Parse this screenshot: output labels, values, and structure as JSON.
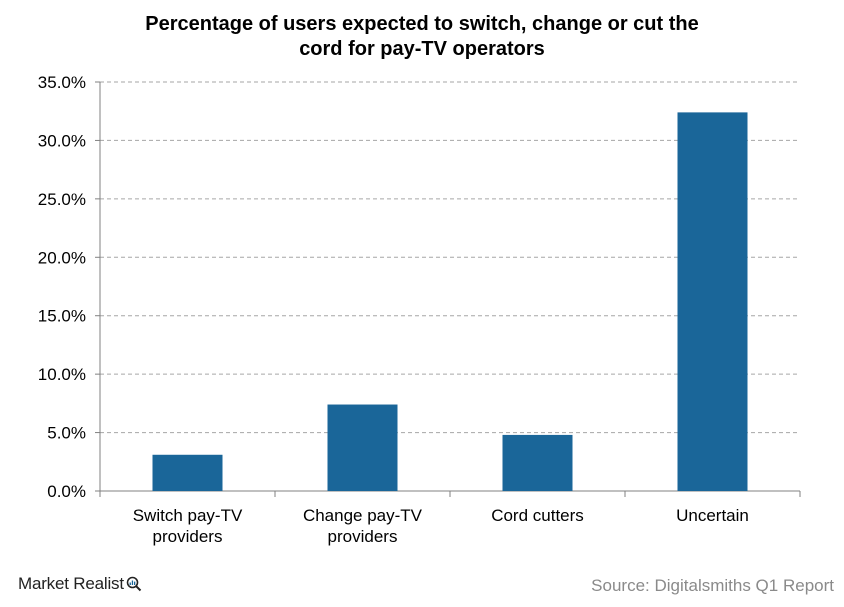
{
  "chart_data": {
    "type": "bar",
    "title_lines": [
      "Percentage  of users  expected  to switch, change  or cut the",
      "cord for pay-TV operators"
    ],
    "categories": [
      [
        "Switch pay-TV",
        "providers"
      ],
      [
        "Change pay-TV",
        "providers"
      ],
      [
        "Cord cutters"
      ],
      [
        "Uncertain"
      ]
    ],
    "values": [
      3.1,
      7.4,
      4.8,
      32.4
    ],
    "ylim": [
      0,
      35
    ],
    "yticks": [
      0,
      5,
      10,
      15,
      20,
      25,
      30,
      35
    ],
    "ytick_labels": [
      "0.0%",
      "5.0%",
      "10.0%",
      "15.0%",
      "20.0%",
      "25.0%",
      "30.0%",
      "35.0%"
    ],
    "xlabel": "",
    "ylabel": "",
    "grid": "horizontal-dashed",
    "bar_color": "#1a6699",
    "grid_color": "#a6a6a6",
    "axis_color": "#808080"
  },
  "footer": {
    "brand": "Market Realist",
    "brand_icon": "magnifier-chart-icon",
    "source": "Source: Digitalsmiths Q1 Report"
  }
}
